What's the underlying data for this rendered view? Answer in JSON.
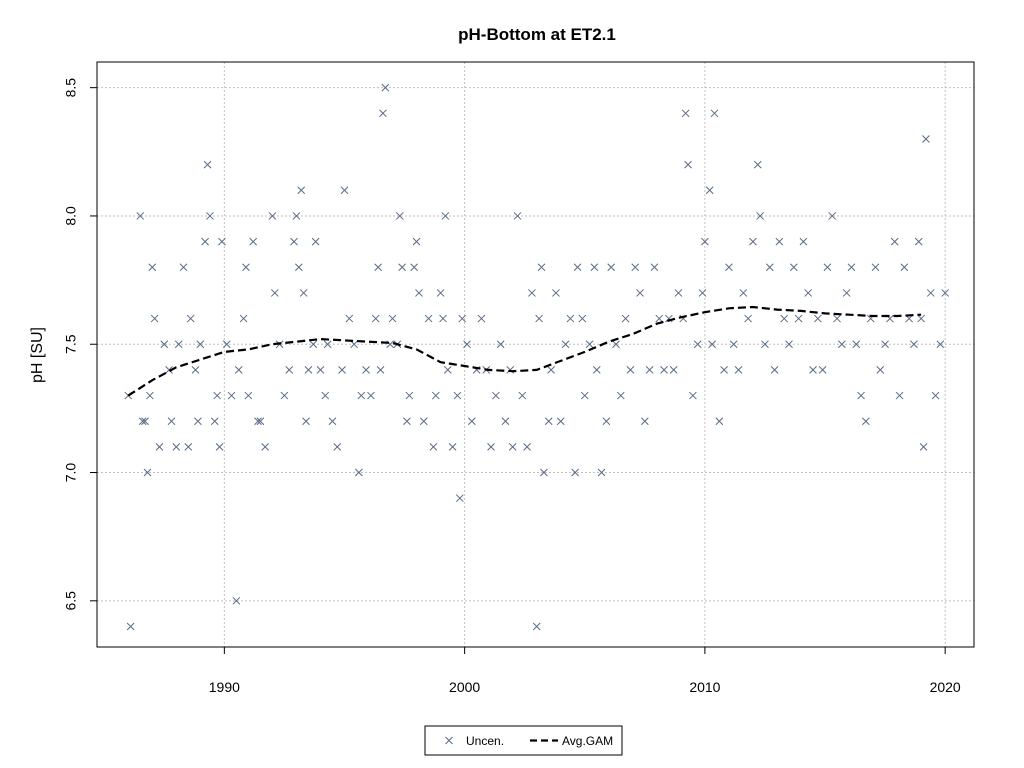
{
  "chart_data": {
    "type": "scatter",
    "title": "pH-Bottom at ET2.1",
    "xlabel": "",
    "ylabel": "pH [SU]",
    "xlim": [
      1984.7,
      2021.2
    ],
    "ylim": [
      6.32,
      8.6
    ],
    "x_ticks": [
      1990,
      2000,
      2010,
      2020
    ],
    "x_tick_labels": [
      "1990",
      "2000",
      "2010",
      "2020"
    ],
    "y_ticks": [
      6.5,
      7.0,
      7.5,
      8.0,
      8.5
    ],
    "y_tick_labels": [
      "6.5",
      "7.0",
      "7.5",
      "8.0",
      "8.5"
    ],
    "grid": true,
    "legend_position": "bottom-center",
    "colors": {
      "points": "#5a6b85",
      "line": "#000000",
      "grid": "#c0c0c0"
    },
    "legend": [
      {
        "label": "Uncen.",
        "symbol": "cross"
      },
      {
        "label": "Avg.GAM",
        "symbol": "dashed-line"
      }
    ],
    "series": [
      {
        "name": "Uncen.",
        "kind": "points",
        "points": [
          [
            1986.0,
            7.3
          ],
          [
            1986.1,
            6.4
          ],
          [
            1986.5,
            8.0
          ],
          [
            1986.6,
            7.2
          ],
          [
            1986.7,
            7.2
          ],
          [
            1986.8,
            7.0
          ],
          [
            1986.9,
            7.3
          ],
          [
            1987.0,
            7.8
          ],
          [
            1987.1,
            7.6
          ],
          [
            1987.3,
            7.1
          ],
          [
            1987.5,
            7.5
          ],
          [
            1987.7,
            7.4
          ],
          [
            1987.8,
            7.2
          ],
          [
            1988.0,
            7.1
          ],
          [
            1988.1,
            7.5
          ],
          [
            1988.3,
            7.8
          ],
          [
            1988.5,
            7.1
          ],
          [
            1988.6,
            7.6
          ],
          [
            1988.8,
            7.4
          ],
          [
            1988.9,
            7.2
          ],
          [
            1989.0,
            7.5
          ],
          [
            1989.2,
            7.9
          ],
          [
            1989.3,
            8.2
          ],
          [
            1989.4,
            8.0
          ],
          [
            1989.6,
            7.2
          ],
          [
            1989.7,
            7.3
          ],
          [
            1989.8,
            7.1
          ],
          [
            1989.9,
            7.9
          ],
          [
            1990.1,
            7.5
          ],
          [
            1990.3,
            7.3
          ],
          [
            1990.5,
            6.5
          ],
          [
            1990.6,
            7.4
          ],
          [
            1990.8,
            7.6
          ],
          [
            1990.9,
            7.8
          ],
          [
            1991.0,
            7.3
          ],
          [
            1991.2,
            7.9
          ],
          [
            1991.4,
            7.2
          ],
          [
            1991.5,
            7.2
          ],
          [
            1991.7,
            7.1
          ],
          [
            1992.0,
            8.0
          ],
          [
            1992.1,
            7.7
          ],
          [
            1992.3,
            7.5
          ],
          [
            1992.5,
            7.3
          ],
          [
            1992.7,
            7.4
          ],
          [
            1992.9,
            7.9
          ],
          [
            1993.0,
            8.0
          ],
          [
            1993.1,
            7.8
          ],
          [
            1993.2,
            8.1
          ],
          [
            1993.3,
            7.7
          ],
          [
            1993.4,
            7.2
          ],
          [
            1993.5,
            7.4
          ],
          [
            1993.7,
            7.5
          ],
          [
            1993.8,
            7.9
          ],
          [
            1994.0,
            7.4
          ],
          [
            1994.2,
            7.3
          ],
          [
            1994.3,
            7.5
          ],
          [
            1994.5,
            7.2
          ],
          [
            1994.7,
            7.1
          ],
          [
            1994.9,
            7.4
          ],
          [
            1995.0,
            8.1
          ],
          [
            1995.2,
            7.6
          ],
          [
            1995.4,
            7.5
          ],
          [
            1995.6,
            7.0
          ],
          [
            1995.7,
            7.3
          ],
          [
            1995.9,
            7.4
          ],
          [
            1996.1,
            7.3
          ],
          [
            1996.3,
            7.6
          ],
          [
            1996.4,
            7.8
          ],
          [
            1996.5,
            7.4
          ],
          [
            1996.6,
            8.4
          ],
          [
            1996.7,
            8.5
          ],
          [
            1996.9,
            7.5
          ],
          [
            1997.0,
            7.6
          ],
          [
            1997.2,
            7.5
          ],
          [
            1997.3,
            8.0
          ],
          [
            1997.4,
            7.8
          ],
          [
            1997.6,
            7.2
          ],
          [
            1997.7,
            7.3
          ],
          [
            1997.9,
            7.8
          ],
          [
            1998.0,
            7.9
          ],
          [
            1998.1,
            7.7
          ],
          [
            1998.3,
            7.2
          ],
          [
            1998.5,
            7.6
          ],
          [
            1998.7,
            7.1
          ],
          [
            1998.8,
            7.3
          ],
          [
            1999.0,
            7.7
          ],
          [
            1999.1,
            7.6
          ],
          [
            1999.2,
            8.0
          ],
          [
            1999.3,
            7.4
          ],
          [
            1999.5,
            7.1
          ],
          [
            1999.7,
            7.3
          ],
          [
            1999.8,
            6.9
          ],
          [
            1999.9,
            7.6
          ],
          [
            2000.1,
            7.5
          ],
          [
            2000.3,
            7.2
          ],
          [
            2000.5,
            7.4
          ],
          [
            2000.7,
            7.6
          ],
          [
            2000.9,
            7.4
          ],
          [
            2001.1,
            7.1
          ],
          [
            2001.3,
            7.3
          ],
          [
            2001.5,
            7.5
          ],
          [
            2001.7,
            7.2
          ],
          [
            2001.9,
            7.4
          ],
          [
            2002.0,
            7.1
          ],
          [
            2002.2,
            8.0
          ],
          [
            2002.4,
            7.3
          ],
          [
            2002.6,
            7.1
          ],
          [
            2002.8,
            7.7
          ],
          [
            2003.0,
            6.4
          ],
          [
            2003.1,
            7.6
          ],
          [
            2003.2,
            7.8
          ],
          [
            2003.3,
            7.0
          ],
          [
            2003.5,
            7.2
          ],
          [
            2003.6,
            7.4
          ],
          [
            2003.8,
            7.7
          ],
          [
            2004.0,
            7.2
          ],
          [
            2004.2,
            7.5
          ],
          [
            2004.4,
            7.6
          ],
          [
            2004.6,
            7.0
          ],
          [
            2004.7,
            7.8
          ],
          [
            2004.9,
            7.6
          ],
          [
            2005.0,
            7.3
          ],
          [
            2005.2,
            7.5
          ],
          [
            2005.4,
            7.8
          ],
          [
            2005.5,
            7.4
          ],
          [
            2005.7,
            7.0
          ],
          [
            2005.9,
            7.2
          ],
          [
            2006.1,
            7.8
          ],
          [
            2006.3,
            7.5
          ],
          [
            2006.5,
            7.3
          ],
          [
            2006.7,
            7.6
          ],
          [
            2006.9,
            7.4
          ],
          [
            2007.1,
            7.8
          ],
          [
            2007.3,
            7.7
          ],
          [
            2007.5,
            7.2
          ],
          [
            2007.7,
            7.4
          ],
          [
            2007.9,
            7.8
          ],
          [
            2008.1,
            7.6
          ],
          [
            2008.3,
            7.4
          ],
          [
            2008.5,
            7.6
          ],
          [
            2008.7,
            7.4
          ],
          [
            2008.9,
            7.7
          ],
          [
            2009.1,
            7.6
          ],
          [
            2009.2,
            8.4
          ],
          [
            2009.3,
            8.2
          ],
          [
            2009.5,
            7.3
          ],
          [
            2009.7,
            7.5
          ],
          [
            2009.9,
            7.7
          ],
          [
            2010.0,
            7.9
          ],
          [
            2010.2,
            8.1
          ],
          [
            2010.3,
            7.5
          ],
          [
            2010.4,
            8.4
          ],
          [
            2010.6,
            7.2
          ],
          [
            2010.8,
            7.4
          ],
          [
            2011.0,
            7.8
          ],
          [
            2011.2,
            7.5
          ],
          [
            2011.4,
            7.4
          ],
          [
            2011.6,
            7.7
          ],
          [
            2011.8,
            7.6
          ],
          [
            2012.0,
            7.9
          ],
          [
            2012.2,
            8.2
          ],
          [
            2012.3,
            8.0
          ],
          [
            2012.5,
            7.5
          ],
          [
            2012.7,
            7.8
          ],
          [
            2012.9,
            7.4
          ],
          [
            2013.1,
            7.9
          ],
          [
            2013.3,
            7.6
          ],
          [
            2013.5,
            7.5
          ],
          [
            2013.7,
            7.8
          ],
          [
            2013.9,
            7.6
          ],
          [
            2014.1,
            7.9
          ],
          [
            2014.3,
            7.7
          ],
          [
            2014.5,
            7.4
          ],
          [
            2014.7,
            7.6
          ],
          [
            2014.9,
            7.4
          ],
          [
            2015.1,
            7.8
          ],
          [
            2015.3,
            8.0
          ],
          [
            2015.5,
            7.6
          ],
          [
            2015.7,
            7.5
          ],
          [
            2015.9,
            7.7
          ],
          [
            2016.1,
            7.8
          ],
          [
            2016.3,
            7.5
          ],
          [
            2016.5,
            7.3
          ],
          [
            2016.7,
            7.2
          ],
          [
            2016.9,
            7.6
          ],
          [
            2017.1,
            7.8
          ],
          [
            2017.3,
            7.4
          ],
          [
            2017.5,
            7.5
          ],
          [
            2017.7,
            7.6
          ],
          [
            2017.9,
            7.9
          ],
          [
            2018.1,
            7.3
          ],
          [
            2018.3,
            7.8
          ],
          [
            2018.5,
            7.6
          ],
          [
            2018.7,
            7.5
          ],
          [
            2018.9,
            7.9
          ],
          [
            2019.0,
            7.6
          ],
          [
            2019.1,
            7.1
          ],
          [
            2019.2,
            8.3
          ],
          [
            2019.4,
            7.7
          ],
          [
            2019.6,
            7.3
          ],
          [
            2019.8,
            7.5
          ],
          [
            2020.0,
            7.7
          ]
        ]
      },
      {
        "name": "Avg.GAM",
        "kind": "line",
        "points": [
          [
            1986.0,
            7.3
          ],
          [
            1987.0,
            7.36
          ],
          [
            1988.0,
            7.41
          ],
          [
            1989.0,
            7.44
          ],
          [
            1990.0,
            7.47
          ],
          [
            1991.0,
            7.48
          ],
          [
            1992.0,
            7.5
          ],
          [
            1993.0,
            7.51
          ],
          [
            1994.0,
            7.52
          ],
          [
            1995.0,
            7.515
          ],
          [
            1996.0,
            7.51
          ],
          [
            1997.0,
            7.505
          ],
          [
            1998.0,
            7.48
          ],
          [
            1999.0,
            7.43
          ],
          [
            2000.0,
            7.415
          ],
          [
            2001.0,
            7.4
          ],
          [
            2002.0,
            7.395
          ],
          [
            2003.0,
            7.4
          ],
          [
            2004.0,
            7.435
          ],
          [
            2005.0,
            7.47
          ],
          [
            2006.0,
            7.51
          ],
          [
            2007.0,
            7.54
          ],
          [
            2008.0,
            7.58
          ],
          [
            2009.0,
            7.605
          ],
          [
            2010.0,
            7.625
          ],
          [
            2011.0,
            7.64
          ],
          [
            2012.0,
            7.645
          ],
          [
            2013.0,
            7.635
          ],
          [
            2014.0,
            7.63
          ],
          [
            2015.0,
            7.62
          ],
          [
            2016.0,
            7.615
          ],
          [
            2017.0,
            7.61
          ],
          [
            2018.0,
            7.61
          ],
          [
            2019.0,
            7.615
          ]
        ]
      }
    ]
  }
}
